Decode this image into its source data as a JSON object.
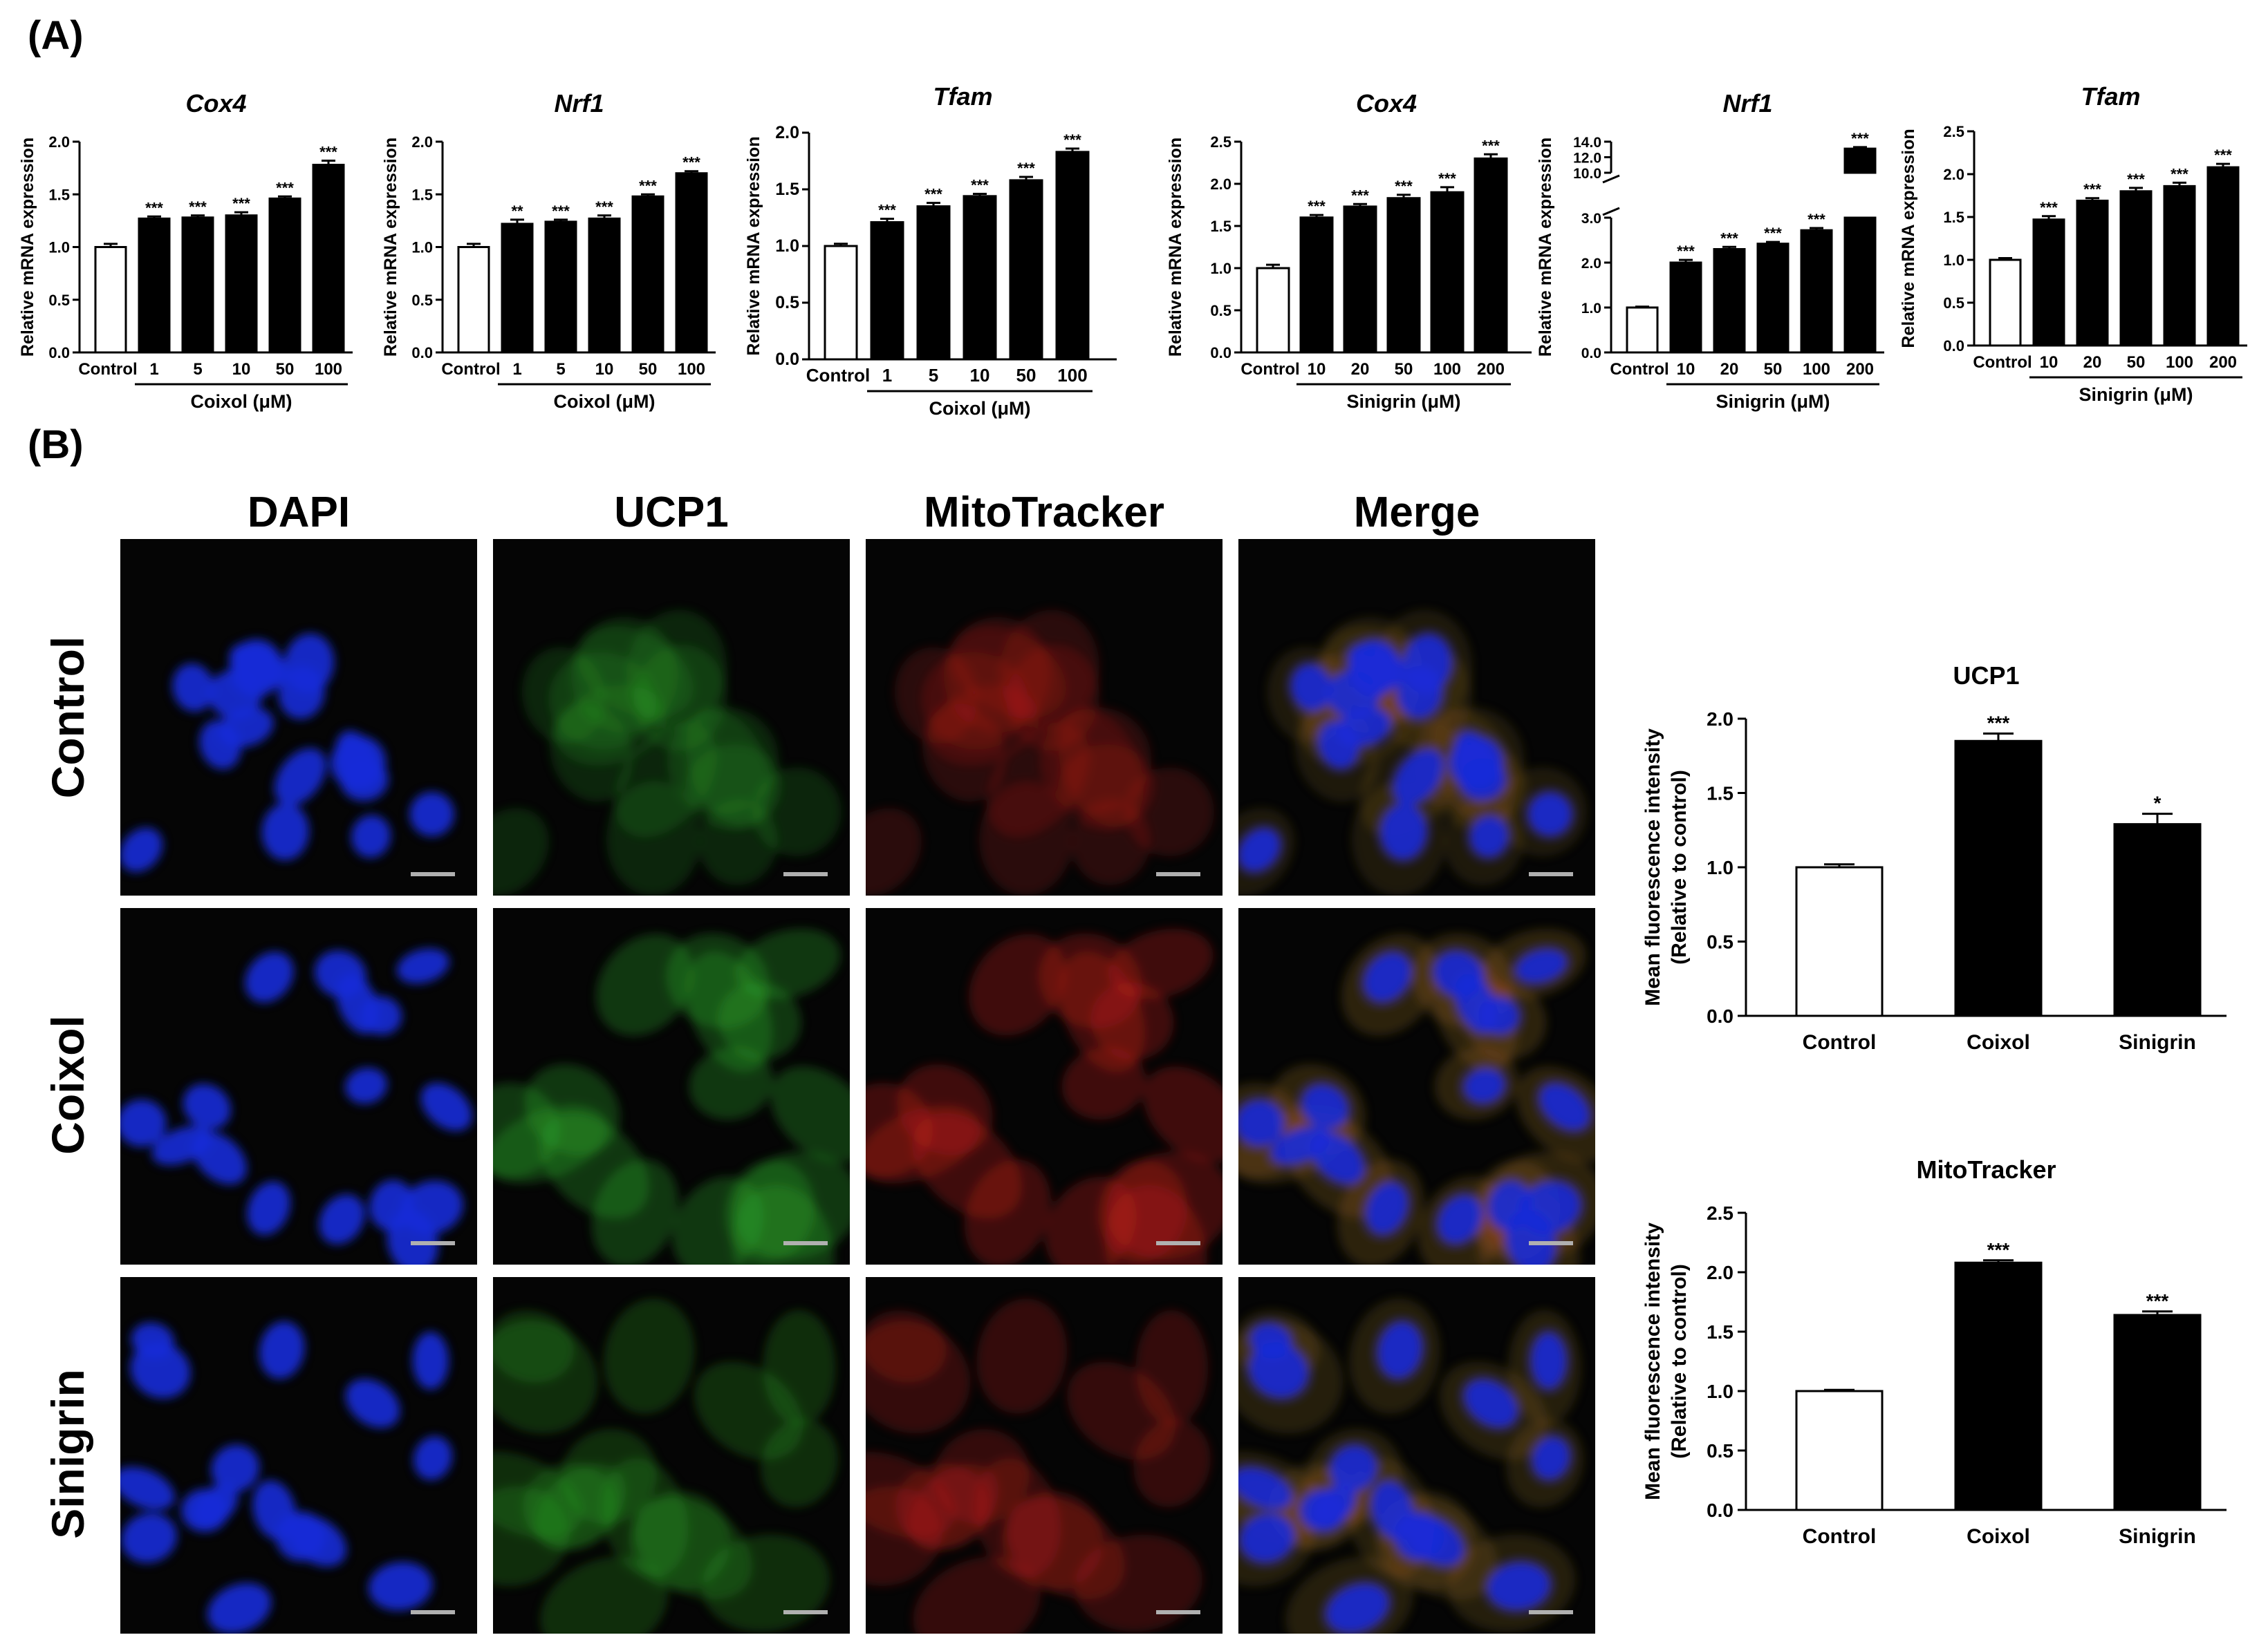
{
  "panels": {
    "a": "(A)",
    "b": "(B)"
  },
  "chart_data": [
    {
      "type": "bar",
      "title": "Cox4",
      "ylabel": "Relative mRNA expression",
      "categories": [
        "Control",
        "1",
        "5",
        "10",
        "50",
        "100"
      ],
      "group_label": "Coixol (μM)",
      "values": [
        1.0,
        1.27,
        1.28,
        1.3,
        1.46,
        1.78
      ],
      "errors": [
        0.03,
        0.02,
        0.02,
        0.03,
        0.02,
        0.04
      ],
      "significance": [
        "",
        "***",
        "***",
        "***",
        "***",
        "***"
      ],
      "ylim": [
        0,
        2.0
      ],
      "yticks": [
        "0.0",
        "0.5",
        "1.0",
        "1.5",
        "2.0"
      ],
      "grid": false
    },
    {
      "type": "bar",
      "title": "Nrf1",
      "ylabel": "Relative mRNA expression",
      "categories": [
        "Control",
        "1",
        "5",
        "10",
        "50",
        "100"
      ],
      "group_label": "Coixol (μM)",
      "values": [
        1.0,
        1.22,
        1.24,
        1.27,
        1.48,
        1.7
      ],
      "errors": [
        0.03,
        0.04,
        0.02,
        0.03,
        0.02,
        0.02
      ],
      "significance": [
        "",
        "**",
        "***",
        "***",
        "***",
        "***"
      ],
      "ylim": [
        0,
        2.0
      ],
      "yticks": [
        "0.0",
        "0.5",
        "1.0",
        "1.5",
        "2.0"
      ],
      "grid": false
    },
    {
      "type": "bar",
      "title": "Tfam",
      "ylabel": "Relative mRNA expression",
      "categories": [
        "Control",
        "1",
        "5",
        "10",
        "50",
        "100"
      ],
      "group_label": "Coixol (μM)",
      "values": [
        1.0,
        1.21,
        1.35,
        1.44,
        1.58,
        1.83
      ],
      "errors": [
        0.02,
        0.03,
        0.03,
        0.02,
        0.03,
        0.03
      ],
      "significance": [
        "",
        "***",
        "***",
        "***",
        "***",
        "***"
      ],
      "ylim": [
        0,
        2.0
      ],
      "yticks": [
        "0.0",
        "0.5",
        "1.0",
        "1.5",
        "2.0"
      ],
      "grid": false
    },
    {
      "type": "bar",
      "title": "Cox4",
      "ylabel": "Relative mRNA expression",
      "categories": [
        "Control",
        "10",
        "20",
        "50",
        "100",
        "200"
      ],
      "group_label": "Sinigrin (μM)",
      "values": [
        1.0,
        1.6,
        1.73,
        1.83,
        1.9,
        2.3
      ],
      "errors": [
        0.04,
        0.03,
        0.03,
        0.04,
        0.06,
        0.05
      ],
      "significance": [
        "",
        "***",
        "***",
        "***",
        "***",
        "***"
      ],
      "ylim": [
        0,
        2.5
      ],
      "yticks": [
        "0.0",
        "0.5",
        "1.0",
        "1.5",
        "2.0",
        "2.5"
      ],
      "grid": false
    },
    {
      "type": "bar",
      "title": "Nrf1",
      "ylabel": "Relative mRNA expression",
      "categories": [
        "Control",
        "10",
        "20",
        "50",
        "100",
        "200"
      ],
      "group_label": "Sinigrin (μM)",
      "values": [
        1.0,
        2.0,
        2.3,
        2.42,
        2.72,
        13.1
      ],
      "errors": [
        0.02,
        0.06,
        0.05,
        0.04,
        0.05,
        0.2
      ],
      "significance": [
        "",
        "***",
        "***",
        "***",
        "***",
        "***"
      ],
      "ylim": [
        0,
        14.0
      ],
      "axis_break": [
        3.0,
        10.0
      ],
      "yticks_lower": [
        "0.0",
        "1.0",
        "2.0",
        "3.0"
      ],
      "yticks_upper": [
        "10.0",
        "12.0",
        "14.0"
      ],
      "grid": false
    },
    {
      "type": "bar",
      "title": "Tfam",
      "ylabel": "Relative mRNA expression",
      "categories": [
        "Control",
        "10",
        "20",
        "50",
        "100",
        "200"
      ],
      "group_label": "Sinigrin (μM)",
      "values": [
        1.0,
        1.47,
        1.69,
        1.8,
        1.86,
        2.08
      ],
      "errors": [
        0.02,
        0.04,
        0.03,
        0.04,
        0.04,
        0.04
      ],
      "significance": [
        "",
        "***",
        "***",
        "***",
        "***",
        "***"
      ],
      "ylim": [
        0,
        2.5
      ],
      "yticks": [
        "0.0",
        "0.5",
        "1.0",
        "1.5",
        "2.0",
        "2.5"
      ],
      "grid": false
    },
    {
      "type": "bar",
      "title": "UCP1",
      "ylabel": "Mean fluorescence intensity",
      "ylabel2": "(Relative to control)",
      "categories": [
        "Control",
        "Coixol",
        "Sinigrin"
      ],
      "values": [
        1.0,
        1.85,
        1.29
      ],
      "errors": [
        0.02,
        0.05,
        0.07
      ],
      "significance": [
        "",
        "***",
        "*"
      ],
      "ylim": [
        0,
        2.0
      ],
      "yticks": [
        "0.0",
        "0.5",
        "1.0",
        "1.5",
        "2.0"
      ],
      "grid": false
    },
    {
      "type": "bar",
      "title": "MitoTracker",
      "ylabel": "Mean fluorescence intensity",
      "ylabel2": "(Relative to control)",
      "categories": [
        "Control",
        "Coixol",
        "Sinigrin"
      ],
      "values": [
        1.0,
        2.08,
        1.64
      ],
      "errors": [
        0.01,
        0.02,
        0.03
      ],
      "significance": [
        "",
        "***",
        "***"
      ],
      "ylim": [
        0,
        2.5
      ],
      "yticks": [
        "0.0",
        "0.5",
        "1.0",
        "1.5",
        "2.0",
        "2.5"
      ],
      "grid": false
    }
  ],
  "microscopy": {
    "columns": [
      "DAPI",
      "UCP1",
      "MitoTracker",
      "Merge"
    ],
    "rows": [
      "Control",
      "Coixol",
      "Sinigrin"
    ],
    "channel_colors": {
      "dapi": "#1a2bd8",
      "ucp1": "#2fae2a",
      "mito": "#c8201c",
      "background": "#050505"
    }
  }
}
